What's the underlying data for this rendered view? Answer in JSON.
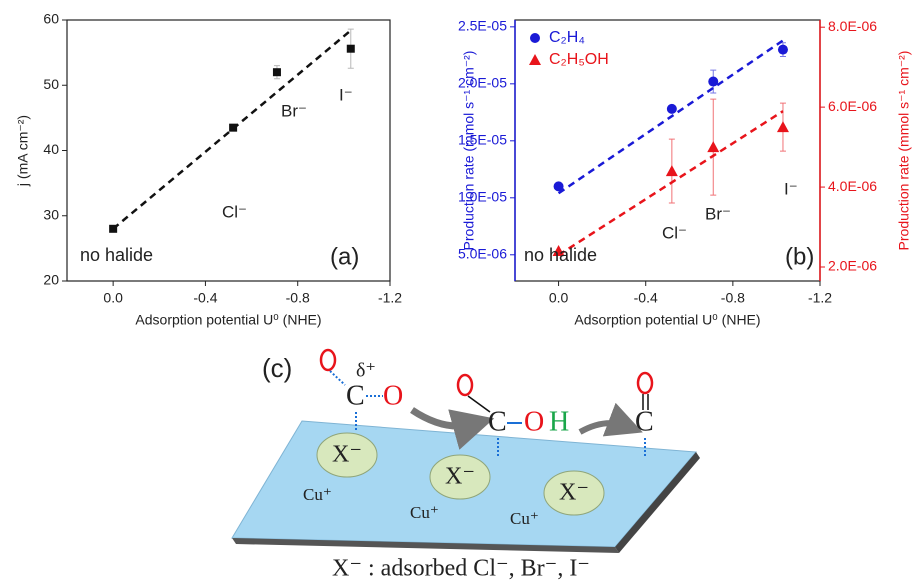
{
  "chart_data": [
    {
      "type": "scatter",
      "xlabel": "Adsorption potential U⁰ (NHE)",
      "ylabel": "j (mA cm⁻²)",
      "xlim": [
        0.2,
        -1.2
      ],
      "xticks": [
        {
          "value": 0,
          "label": "0.0"
        },
        -0.4,
        -0.8,
        -1.2
      ],
      "ylim": [
        20,
        60
      ],
      "yticks": [
        20,
        30,
        40,
        50,
        60
      ],
      "x": [
        0,
        -0.52,
        -0.71,
        -1.03
      ],
      "series": [
        {
          "color": "#111111",
          "marker": "square",
          "values": [
            28,
            43.5,
            52,
            55.6
          ],
          "errors": [
            0,
            0.5,
            1,
            3
          ],
          "fit": {
            "x": [
              0,
              -1.03
            ],
            "values": [
              28,
              58.4
            ]
          }
        }
      ],
      "annotations": [
        "no halide",
        "Cl⁻",
        "Br⁻",
        "I⁻",
        "(a)"
      ]
    },
    {
      "type": "scatter",
      "xlabel": "Adsorption potential U⁰ (NHE)",
      "ylabel": "Production rate (mmol s⁻¹ cm⁻²)",
      "y2label": "Production rate (mmol s⁻¹ cm⁻²)",
      "y_color": "#1a1ad6",
      "y2_color": "#e8141b",
      "xlim": [
        0.2,
        -1.2
      ],
      "xticks": [
        {
          "value": 0,
          "label": "0.0"
        },
        -0.4,
        -0.8,
        -1.2
      ],
      "ylim": [
        2.7e-06,
        2.56e-05
      ],
      "yticks": [
        {
          "value": 5e-06,
          "label": "5.0E-06"
        },
        {
          "value": 1e-05,
          "label": "1.0E-05"
        },
        {
          "value": 1.5e-05,
          "label": "1.5E-05"
        },
        {
          "value": 2e-05,
          "label": "2.0E-05"
        },
        {
          "value": 2.5e-05,
          "label": "2.5E-05"
        }
      ],
      "y2lim": [
        1.65e-06,
        8.18e-06
      ],
      "y2ticks": [
        {
          "value": 2e-06,
          "label": "2.0E-06"
        },
        {
          "value": 4e-06,
          "label": "4.0E-06"
        },
        {
          "value": 6e-06,
          "label": "6.0E-06"
        },
        {
          "value": 8e-06,
          "label": "8.0E-06"
        }
      ],
      "x": [
        0,
        -0.52,
        -0.71,
        -1.03
      ],
      "series": [
        {
          "name": "C₂H₄",
          "color": "#1a1ad6",
          "marker": "circle",
          "values": [
            1.1e-05,
            1.78e-05,
            2.02e-05,
            2.3e-05
          ],
          "errors": [
            0,
            3e-07,
            1e-06,
            6e-07
          ],
          "fit": {
            "x": [
              0,
              -1.03
            ],
            "values": [
              1.04e-05,
              2.38e-05
            ]
          }
        },
        {
          "name": "C₂H₅OH",
          "color": "#e8141b",
          "marker": "triangle",
          "axis": "y2",
          "values": [
            2.4e-06,
            4.4e-06,
            5e-06,
            5.5e-06
          ],
          "errors": [
            0,
            8e-07,
            1.2e-06,
            6e-07
          ],
          "fit": {
            "x": [
              0,
              -1.03
            ],
            "values": [
              2.3e-06,
              5.9e-06
            ]
          }
        }
      ],
      "legend": "upper left",
      "annotations": [
        "no halide",
        "Cl⁻",
        "Br⁻",
        "I⁻",
        "(b)"
      ]
    }
  ],
  "diagram": {
    "label": "(c)",
    "delta": "δ⁺",
    "carbon": "C",
    "oxygen": "O",
    "hydrogen": "H",
    "halide": "X⁻",
    "copper": "Cu⁺",
    "caption": "X⁻ : adsorbed Cl⁻, Br⁻, I⁻"
  }
}
